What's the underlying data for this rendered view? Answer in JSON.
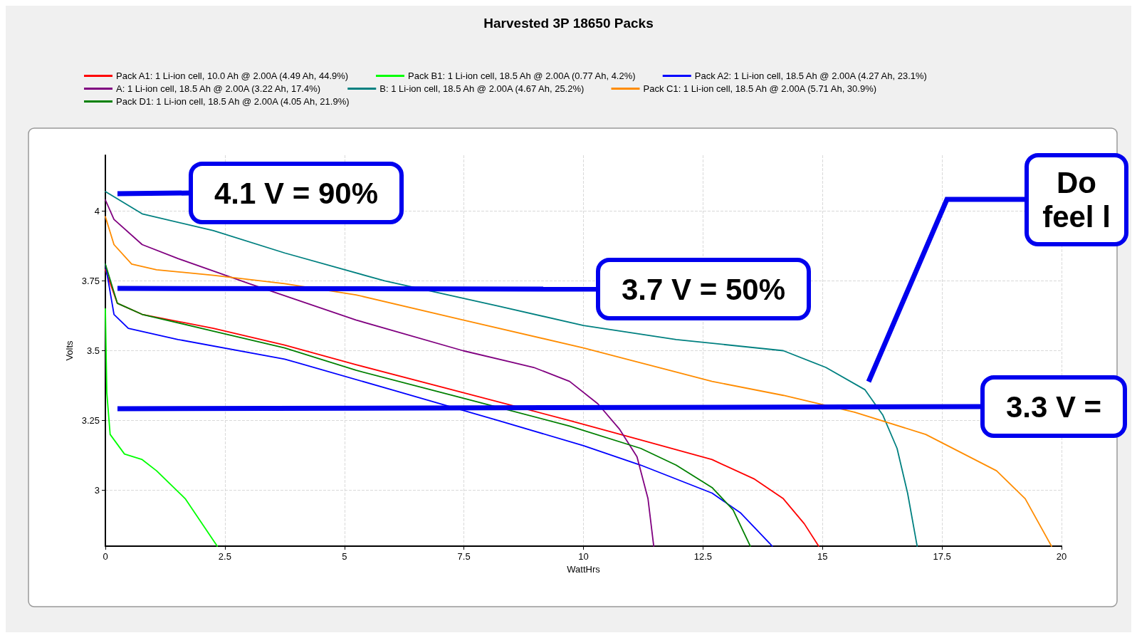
{
  "chart_data": {
    "type": "line",
    "subtitle": "Harvested 3P 18650 Packs",
    "xlabel": "WattHrs",
    "ylabel": "Volts",
    "xlim": [
      0,
      20
    ],
    "xticks": [
      0,
      2.5,
      5,
      7.5,
      10,
      12.5,
      15,
      17.5,
      20
    ],
    "ylim": [
      2.8,
      4.2
    ],
    "yticks": [
      3,
      3.25,
      3.5,
      3.75,
      4
    ],
    "grid": true,
    "legend": "top",
    "marker": "none",
    "line_style": "solid",
    "series": [
      {
        "name": "Pack A1: 1 Li-ion cell, 10.0 Ah @ 2.00A (4.49 Ah, 44.9%)",
        "color": "#ff0000",
        "x": [
          0,
          0.25,
          0.77,
          2.26,
          3.75,
          5.24,
          7.48,
          9.71,
          11.2,
          12.69,
          13.58,
          14.18,
          14.62,
          14.92
        ],
        "values": [
          3.79,
          3.67,
          3.63,
          3.58,
          3.52,
          3.45,
          3.35,
          3.25,
          3.18,
          3.11,
          3.04,
          2.97,
          2.88,
          2.8
        ]
      },
      {
        "name": "Pack B1: 1 Li-ion cell, 18.5 Ah @ 2.00A (0.77 Ah, 4.2%)",
        "color": "#00ff00",
        "x": [
          0,
          0.03,
          0.1,
          0.4,
          0.77,
          1.07,
          1.67,
          2.34
        ],
        "values": [
          3.65,
          3.35,
          3.2,
          3.13,
          3.11,
          3.07,
          2.97,
          2.8
        ]
      },
      {
        "name": "Pack A2: 1 Li-ion cell, 18.5 Ah @ 2.00A (4.27 Ah, 23.1%)",
        "color": "#0000ff",
        "x": [
          0,
          0.18,
          0.48,
          1.52,
          3.75,
          5.99,
          8.22,
          10,
          11.2,
          12.69,
          13.28,
          13.95
        ],
        "values": [
          3.81,
          3.63,
          3.58,
          3.54,
          3.47,
          3.36,
          3.25,
          3.16,
          3.09,
          2.99,
          2.92,
          2.8
        ]
      },
      {
        "name": "A: 1 Li-ion cell, 18.5 Ah @ 2.00A (3.22 Ah, 17.4%)",
        "color": "#800080",
        "x": [
          0,
          0.18,
          0.77,
          1.52,
          3.01,
          5.24,
          7.48,
          8.96,
          9.71,
          10.3,
          10.75,
          11.12,
          11.35,
          11.47
        ],
        "values": [
          4.04,
          3.97,
          3.88,
          3.83,
          3.74,
          3.61,
          3.5,
          3.44,
          3.39,
          3.31,
          3.22,
          3.12,
          2.97,
          2.8
        ]
      },
      {
        "name": "B: 1 Li-ion cell, 18.5 Ah @ 2.00A (4.67 Ah, 25.2%)",
        "color": "#008080",
        "x": [
          0,
          0.77,
          2.26,
          3.75,
          5.84,
          8.22,
          10,
          11.94,
          14.18,
          15.07,
          15.89,
          16.26,
          16.56,
          16.78,
          16.98
        ],
        "values": [
          4.07,
          3.99,
          3.93,
          3.85,
          3.75,
          3.66,
          3.59,
          3.54,
          3.5,
          3.44,
          3.36,
          3.27,
          3.15,
          2.99,
          2.8
        ]
      },
      {
        "name": "Pack C1: 1 Li-ion cell, 18.5 Ah @ 2.00A (5.71 Ah, 30.9%)",
        "color": "#ff8c00",
        "x": [
          0,
          0.18,
          0.55,
          1.07,
          2.26,
          3.75,
          5.24,
          7.48,
          10,
          11.79,
          12.69,
          14.18,
          15.67,
          17.16,
          18.64,
          19.24,
          19.79
        ],
        "values": [
          3.98,
          3.88,
          3.81,
          3.79,
          3.77,
          3.74,
          3.7,
          3.61,
          3.51,
          3.43,
          3.39,
          3.34,
          3.28,
          3.2,
          3.07,
          2.97,
          2.8
        ]
      },
      {
        "name": "Pack D1: 1 Li-ion cell, 18.5 Ah @ 2.00A (4.05 Ah, 21.9%)",
        "color": "#008000",
        "x": [
          0,
          0.25,
          0.77,
          2.26,
          3.75,
          5.24,
          7.48,
          9.71,
          11.2,
          11.94,
          12.69,
          13.13,
          13.49
        ],
        "values": [
          3.81,
          3.67,
          3.63,
          3.57,
          3.51,
          3.43,
          3.33,
          3.23,
          3.15,
          3.09,
          3.01,
          2.93,
          2.8
        ]
      }
    ],
    "annotations": [
      "4.1 V = 90%",
      "3.7 V = 50%",
      "3.3 V =",
      "Do\nfeel l"
    ]
  }
}
